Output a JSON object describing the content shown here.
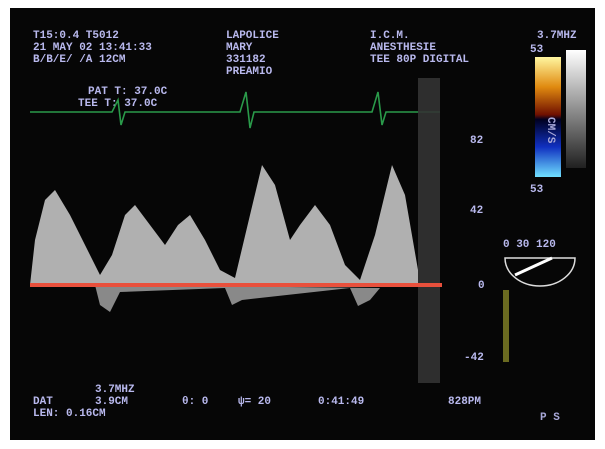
{
  "header": {
    "left": [
      "T15:0.4 T5012",
      "21 MAY  02  13:41:33",
      "B/B/E/ /A 12CM"
    ],
    "patient": [
      "LAPOLICE",
      "MARY",
      "331182",
      "PREAMIO"
    ],
    "institution": [
      "I.C.M.",
      "ANESTHESIE",
      "TEE 80P DIGITAL"
    ],
    "frequency": "3.7MHZ"
  },
  "color_scale": {
    "top": "53",
    "unit": "CM/S",
    "bottom": "53"
  },
  "angle_scale": "0  30 120",
  "temperatures": [
    "PAT T:  37.0C",
    "TEE T:  37.0C"
  ],
  "velocity_scale": [
    "82",
    "42",
    "0",
    "-42"
  ],
  "footer": {
    "frequency": "3.7MHZ",
    "gate_label": "DAT",
    "depth": "3.9CM",
    "angle": "θ: 0",
    "filter": "ψ= 20",
    "time": "0:41:49",
    "clock": "828PM",
    "length": "LEN: 0.16CM",
    "orientation": "P  S"
  }
}
